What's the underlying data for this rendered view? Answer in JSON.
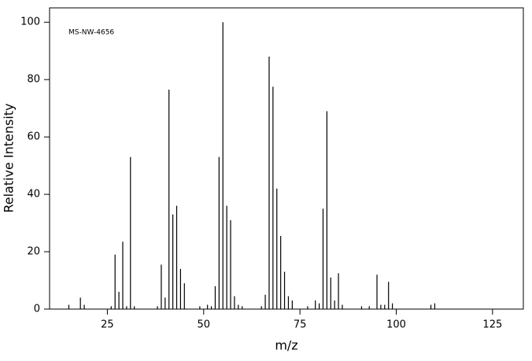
{
  "chart_data": {
    "type": "stem",
    "annotation": "MS-NW-4656",
    "x_label": "m/z",
    "y_label": "Relative Intensity",
    "color": "#000000",
    "x": [
      15,
      18,
      19,
      26,
      27,
      28,
      29,
      30,
      31,
      32,
      38,
      39,
      40,
      41,
      42,
      43,
      44,
      45,
      49,
      51,
      52,
      53,
      54,
      55,
      56,
      57,
      58,
      59,
      60,
      65,
      66,
      67,
      68,
      69,
      70,
      71,
      72,
      73,
      77,
      79,
      80,
      81,
      82,
      83,
      84,
      85,
      86,
      91,
      93,
      95,
      96,
      97,
      98,
      99,
      109,
      110
    ],
    "values": [
      1.5,
      4,
      1.5,
      1,
      19,
      6,
      23.5,
      1,
      53,
      1,
      1,
      15.5,
      4,
      76.5,
      33,
      36,
      14,
      9,
      1,
      1.5,
      1,
      8,
      53,
      100,
      36,
      31,
      4.5,
      1.5,
      1,
      1,
      5,
      88,
      77.5,
      42,
      25.5,
      13,
      4.5,
      3,
      1,
      3,
      2,
      35,
      69,
      11,
      3,
      12.5,
      1.5,
      1,
      1,
      12,
      1.5,
      1.5,
      9.5,
      2,
      1.5,
      2
    ],
    "xlim": [
      10,
      133
    ],
    "ylim": [
      0,
      105
    ],
    "xticks": [
      25,
      50,
      75,
      100,
      125
    ],
    "yticks": [
      0,
      20,
      40,
      60,
      80,
      100
    ]
  }
}
